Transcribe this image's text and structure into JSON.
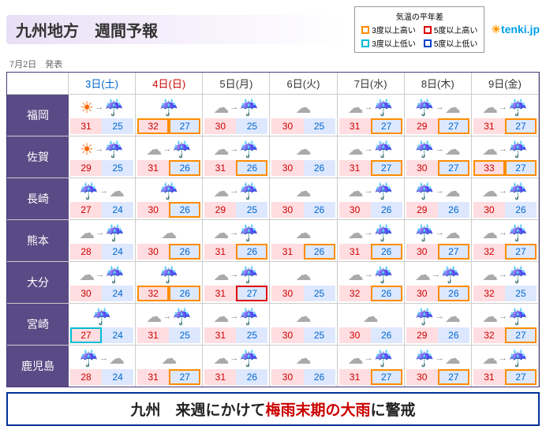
{
  "title": "九州地方　週間予報",
  "legend": {
    "label": "気温の平年差",
    "items": [
      {
        "c": "#ff8c00",
        "t": "3度以上高い"
      },
      {
        "c": "#d00",
        "t": "5度以上高い"
      },
      {
        "c": "#00bcd4",
        "t": "3度以上低い"
      },
      {
        "c": "#0044cc",
        "t": "5度以上低い"
      }
    ]
  },
  "logo": "tenki.jp",
  "issue": "7月2日　発表",
  "days": [
    {
      "l": "3日(土)",
      "c": "sat"
    },
    {
      "l": "4日(日)",
      "c": "sun"
    },
    {
      "l": "5日(月)",
      "c": ""
    },
    {
      "l": "6日(火)",
      "c": ""
    },
    {
      "l": "7日(水)",
      "c": ""
    },
    {
      "l": "8日(木)",
      "c": ""
    },
    {
      "l": "9日(金)",
      "c": ""
    }
  ],
  "prefs": [
    "福岡",
    "佐賀",
    "長崎",
    "熊本",
    "大分",
    "宮崎",
    "鹿児島"
  ],
  "data": [
    [
      {
        "w": "sr",
        "h": "31",
        "l": "25",
        "hb": "",
        "lb": ""
      },
      {
        "w": "r",
        "h": "32",
        "l": "27",
        "hb": "or",
        "lb": "or"
      },
      {
        "w": "cr",
        "h": "30",
        "l": "25",
        "hb": "",
        "lb": ""
      },
      {
        "w": "c",
        "h": "30",
        "l": "25",
        "hb": "",
        "lb": ""
      },
      {
        "w": "cr",
        "h": "31",
        "l": "27",
        "hb": "",
        "lb": "or"
      },
      {
        "w": "rc",
        "h": "29",
        "l": "27",
        "hb": "",
        "lb": "or"
      },
      {
        "w": "cr",
        "h": "31",
        "l": "27",
        "hb": "",
        "lb": "or"
      }
    ],
    [
      {
        "w": "sr",
        "h": "29",
        "l": "25",
        "hb": "",
        "lb": ""
      },
      {
        "w": "cr",
        "h": "31",
        "l": "26",
        "hb": "",
        "lb": "or"
      },
      {
        "w": "cr",
        "h": "31",
        "l": "26",
        "hb": "",
        "lb": "or"
      },
      {
        "w": "c",
        "h": "30",
        "l": "26",
        "hb": "",
        "lb": ""
      },
      {
        "w": "cr",
        "h": "31",
        "l": "27",
        "hb": "",
        "lb": "or"
      },
      {
        "w": "rc",
        "h": "30",
        "l": "27",
        "hb": "",
        "lb": "or"
      },
      {
        "w": "cr",
        "h": "33",
        "l": "27",
        "hb": "or",
        "lb": "or"
      }
    ],
    [
      {
        "w": "rc",
        "h": "27",
        "l": "24",
        "hb": "",
        "lb": ""
      },
      {
        "w": "r",
        "h": "30",
        "l": "26",
        "hb": "",
        "lb": "or"
      },
      {
        "w": "cr",
        "h": "29",
        "l": "25",
        "hb": "",
        "lb": ""
      },
      {
        "w": "c",
        "h": "30",
        "l": "26",
        "hb": "",
        "lb": ""
      },
      {
        "w": "cr",
        "h": "30",
        "l": "26",
        "hb": "",
        "lb": ""
      },
      {
        "w": "rc",
        "h": "29",
        "l": "26",
        "hb": "",
        "lb": ""
      },
      {
        "w": "cr",
        "h": "30",
        "l": "26",
        "hb": "",
        "lb": ""
      }
    ],
    [
      {
        "w": "cr",
        "h": "28",
        "l": "24",
        "hb": "",
        "lb": ""
      },
      {
        "w": "c",
        "h": "30",
        "l": "26",
        "hb": "",
        "lb": "or"
      },
      {
        "w": "cr",
        "h": "31",
        "l": "26",
        "hb": "",
        "lb": "or"
      },
      {
        "w": "c",
        "h": "31",
        "l": "26",
        "hb": "",
        "lb": "or"
      },
      {
        "w": "cr",
        "h": "31",
        "l": "26",
        "hb": "",
        "lb": "or"
      },
      {
        "w": "rc",
        "h": "30",
        "l": "27",
        "hb": "",
        "lb": "or"
      },
      {
        "w": "cr",
        "h": "32",
        "l": "27",
        "hb": "",
        "lb": "or"
      }
    ],
    [
      {
        "w": "cr",
        "h": "30",
        "l": "24",
        "hb": "",
        "lb": ""
      },
      {
        "w": "r",
        "h": "32",
        "l": "26",
        "hb": "or",
        "lb": "or"
      },
      {
        "w": "cr",
        "h": "31",
        "l": "27",
        "hb": "",
        "lb": "rd"
      },
      {
        "w": "c",
        "h": "30",
        "l": "25",
        "hb": "",
        "lb": ""
      },
      {
        "w": "cr",
        "h": "32",
        "l": "26",
        "hb": "",
        "lb": "or"
      },
      {
        "w": "cr",
        "h": "30",
        "l": "26",
        "hb": "",
        "lb": "or"
      },
      {
        "w": "cr",
        "h": "32",
        "l": "25",
        "hb": "",
        "lb": ""
      }
    ],
    [
      {
        "w": "r",
        "h": "27",
        "l": "24",
        "hb": "cy",
        "lb": ""
      },
      {
        "w": "cr",
        "h": "31",
        "l": "25",
        "hb": "",
        "lb": ""
      },
      {
        "w": "cr",
        "h": "31",
        "l": "25",
        "hb": "",
        "lb": ""
      },
      {
        "w": "c",
        "h": "30",
        "l": "25",
        "hb": "",
        "lb": ""
      },
      {
        "w": "c",
        "h": "30",
        "l": "26",
        "hb": "",
        "lb": ""
      },
      {
        "w": "rc",
        "h": "29",
        "l": "26",
        "hb": "",
        "lb": ""
      },
      {
        "w": "cr",
        "h": "32",
        "l": "27",
        "hb": "",
        "lb": "or"
      }
    ],
    [
      {
        "w": "rc",
        "h": "28",
        "l": "24",
        "hb": "",
        "lb": ""
      },
      {
        "w": "c",
        "h": "31",
        "l": "27",
        "hb": "",
        "lb": "or"
      },
      {
        "w": "cr",
        "h": "31",
        "l": "26",
        "hb": "",
        "lb": ""
      },
      {
        "w": "c",
        "h": "30",
        "l": "26",
        "hb": "",
        "lb": ""
      },
      {
        "w": "cr",
        "h": "31",
        "l": "27",
        "hb": "",
        "lb": "or"
      },
      {
        "w": "rc",
        "h": "30",
        "l": "27",
        "hb": "",
        "lb": "or"
      },
      {
        "w": "cr",
        "h": "31",
        "l": "27",
        "hb": "",
        "lb": "or"
      }
    ]
  ],
  "banner": {
    "p1": "九州　来週にかけて",
    "p2": "梅雨末期の大雨",
    "p3": "に警戒"
  },
  "colors": {
    "header_bg": "#e8dff5",
    "pref_bg": "#5a4a85",
    "hi_bg": "#ffdde0",
    "lo_bg": "#dde8ff",
    "banner_border": "#003399"
  }
}
